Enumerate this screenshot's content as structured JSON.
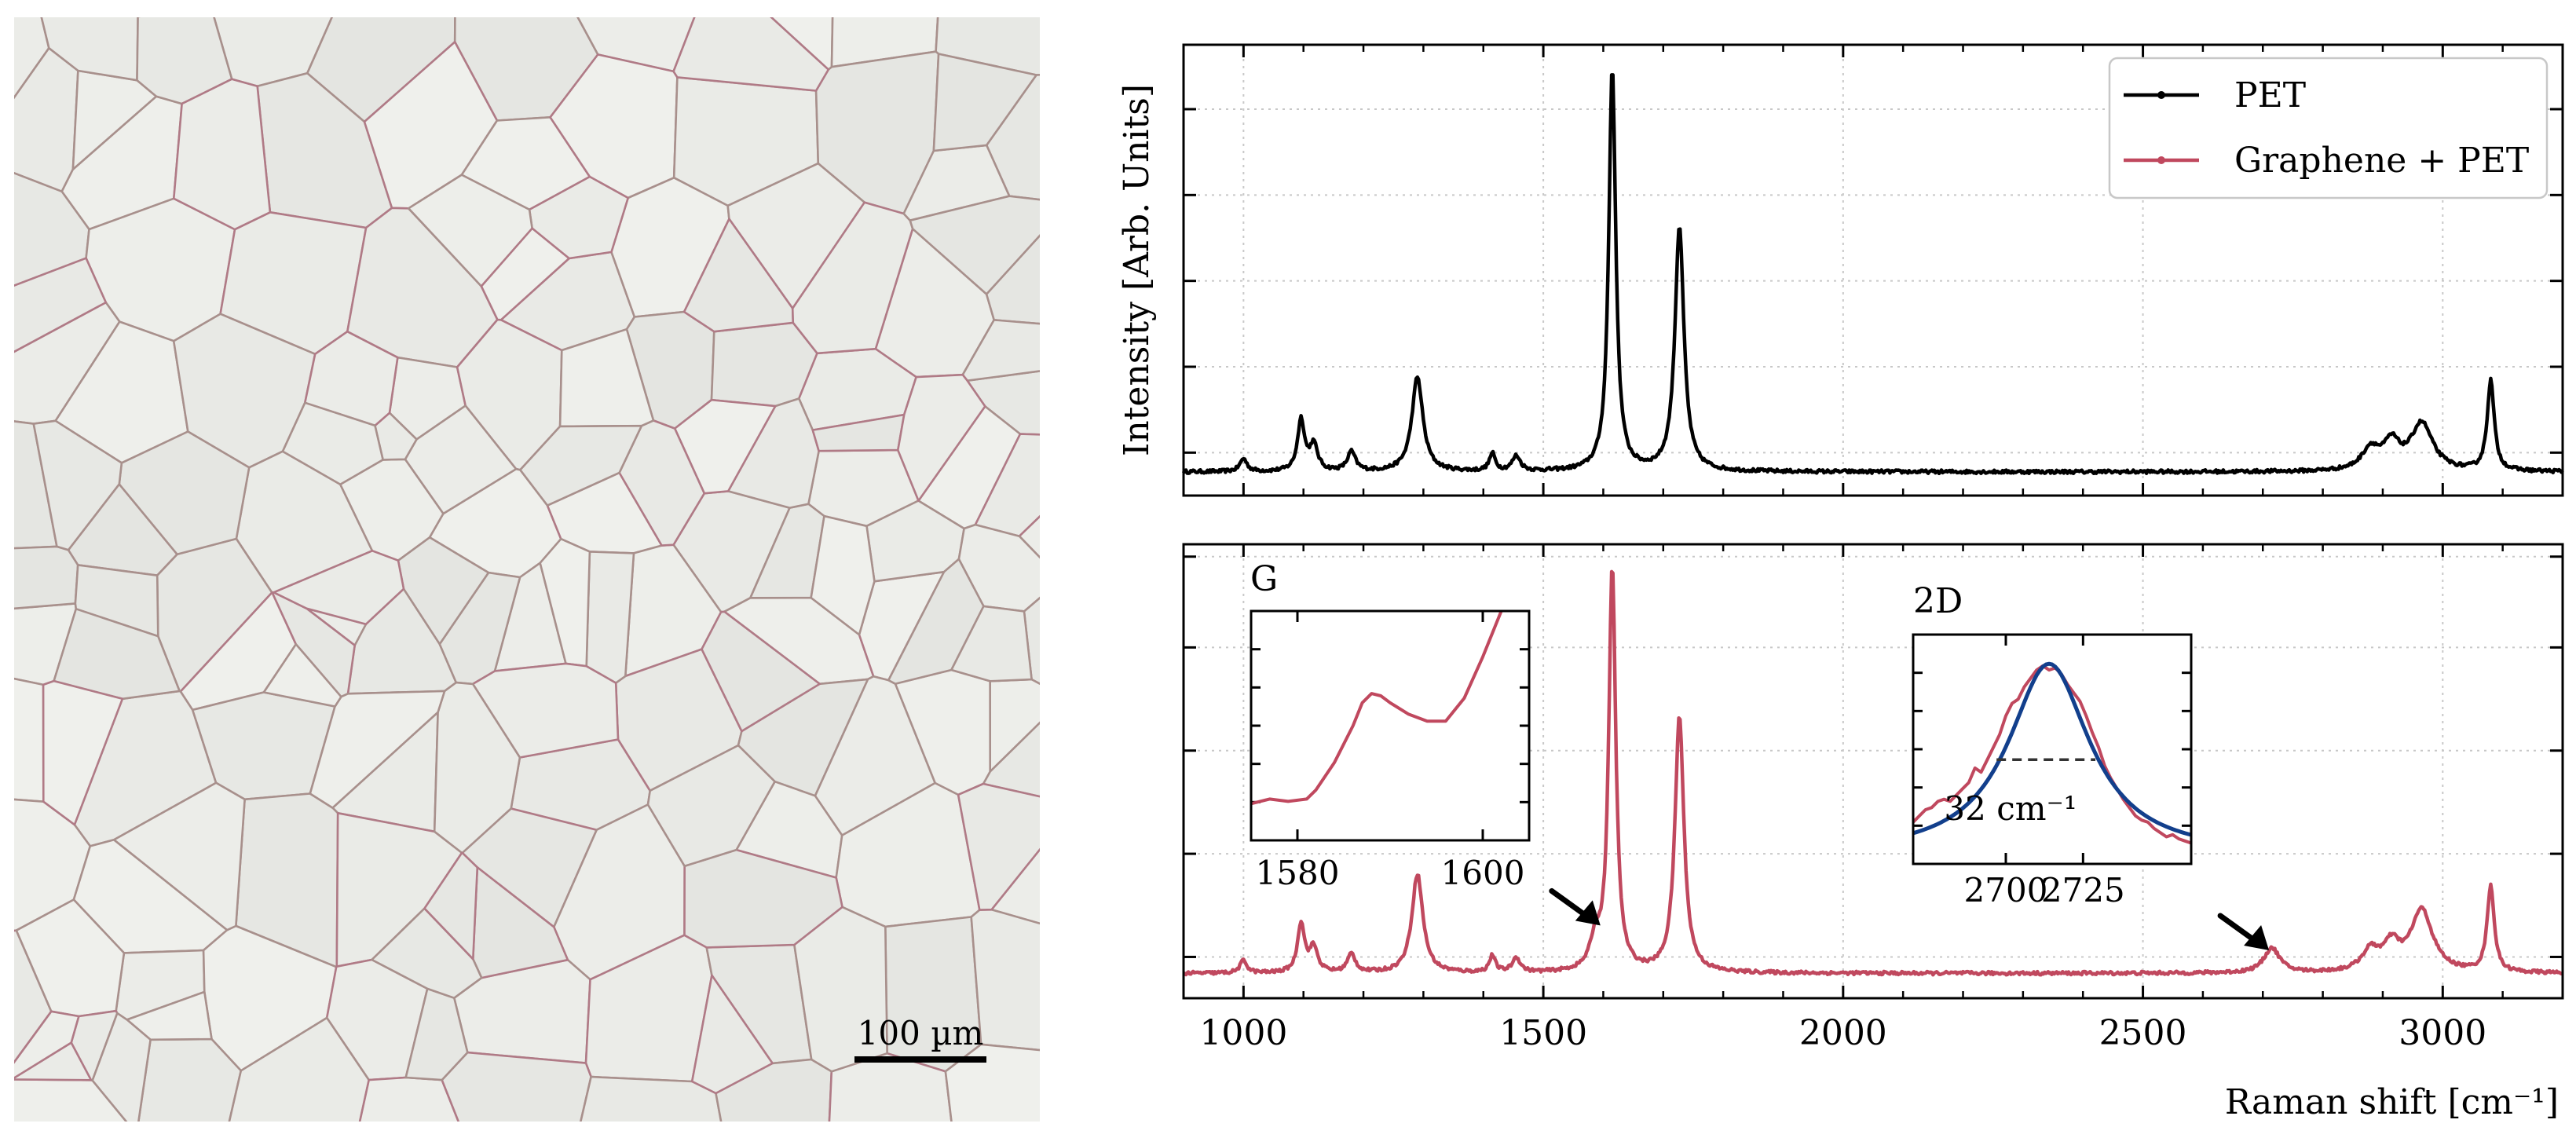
{
  "micrograph": {
    "scale_bar_label": "100 µm",
    "colors": {
      "background": "#ebebe7",
      "boundary": "#a8908c",
      "boundary_accent": "#b07a86"
    }
  },
  "chart_data": [
    {
      "id": "top",
      "type": "line",
      "title": "",
      "xlabel": "",
      "ylabel": "Intensity [Arb. Units]",
      "xlim": [
        900,
        3200
      ],
      "ylim": [
        0,
        1.05
      ],
      "xticks": [
        1000,
        1500,
        2000,
        2500,
        3000
      ],
      "show_xtick_labels": false,
      "grid": true,
      "legend": {
        "position": "top-right",
        "entries": [
          {
            "label": "PET",
            "color": "#000000"
          },
          {
            "label": "Graphene + PET",
            "color": "#c0485e"
          }
        ]
      },
      "series": [
        {
          "name": "PET",
          "color": "#000000",
          "baseline": 0.055,
          "peaks": [
            [
              1000,
              0.03,
              7
            ],
            [
              1096,
              0.12,
              7
            ],
            [
              1117,
              0.06,
              8
            ],
            [
              1180,
              0.045,
              8
            ],
            [
              1290,
              0.22,
              11
            ],
            [
              1415,
              0.04,
              6
            ],
            [
              1455,
              0.035,
              8
            ],
            [
              1615,
              0.94,
              7
            ],
            [
              1727,
              0.57,
              9
            ],
            [
              2880,
              0.05,
              18
            ],
            [
              2915,
              0.06,
              16
            ],
            [
              2965,
              0.11,
              22
            ],
            [
              3080,
              0.21,
              7
            ]
          ]
        }
      ]
    },
    {
      "id": "bottom",
      "type": "line",
      "title": "",
      "xlabel": "Raman shift [cm⁻¹]",
      "ylabel": "",
      "xlim": [
        900,
        3200
      ],
      "ylim": [
        0,
        1.1
      ],
      "xticks": [
        1000,
        1500,
        2000,
        2500,
        3000
      ],
      "xtick_labels": [
        "1000",
        "1500",
        "2000",
        "2500",
        "3000"
      ],
      "grid": true,
      "series": [
        {
          "name": "Graphene + PET",
          "color": "#c0485e",
          "baseline": 0.06,
          "peaks": [
            [
              1000,
              0.03,
              7
            ],
            [
              1096,
              0.12,
              7
            ],
            [
              1117,
              0.06,
              8
            ],
            [
              1180,
              0.045,
              8
            ],
            [
              1290,
              0.24,
              11
            ],
            [
              1415,
              0.04,
              6
            ],
            [
              1455,
              0.035,
              8
            ],
            [
              1587,
              0.07,
              10
            ],
            [
              1615,
              0.98,
              7
            ],
            [
              1727,
              0.62,
              9
            ],
            [
              2715,
              0.06,
              16
            ],
            [
              2880,
              0.05,
              18
            ],
            [
              2915,
              0.06,
              16
            ],
            [
              2965,
              0.15,
              22
            ],
            [
              3080,
              0.21,
              7
            ]
          ]
        }
      ],
      "annotations": [
        {
          "text": "arrow",
          "x": 1590,
          "y": 0.18
        },
        {
          "text": "arrow",
          "x": 2705,
          "y": 0.12
        }
      ]
    },
    {
      "id": "inset-g",
      "type": "line",
      "title": "G",
      "xlim": [
        1575,
        1605
      ],
      "ylim": [
        0,
        1
      ],
      "xticks": [
        1580,
        1600
      ],
      "xtick_labels": [
        "1580",
        "1600"
      ],
      "series": [
        {
          "name": "Graphene + PET",
          "color": "#c0485e",
          "points": [
            [
              1575,
              0.16
            ],
            [
              1577,
              0.18
            ],
            [
              1579,
              0.17
            ],
            [
              1581,
              0.18
            ],
            [
              1582,
              0.22
            ],
            [
              1584,
              0.34
            ],
            [
              1586,
              0.5
            ],
            [
              1587,
              0.6
            ],
            [
              1588,
              0.64
            ],
            [
              1589,
              0.63
            ],
            [
              1590,
              0.6
            ],
            [
              1592,
              0.55
            ],
            [
              1594,
              0.52
            ],
            [
              1596,
              0.52
            ],
            [
              1598,
              0.62
            ],
            [
              1600,
              0.8
            ],
            [
              1602,
              1.05
            ]
          ]
        }
      ]
    },
    {
      "id": "inset-2d",
      "type": "line",
      "title": "2D",
      "xlim": [
        2670,
        2760
      ],
      "ylim": [
        0,
        1.1
      ],
      "xticks": [
        2700,
        2725
      ],
      "xtick_labels": [
        "2700",
        "2725"
      ],
      "fwhm_label": "32 cm⁻¹",
      "fwhm_range": [
        2697,
        2729
      ],
      "fwhm_level": 0.5,
      "series": [
        {
          "name": "Graphene + PET",
          "color": "#c0485e",
          "points": [
            [
              2670,
              0.2
            ],
            [
              2672,
              0.23
            ],
            [
              2674,
              0.26
            ],
            [
              2676,
              0.27
            ],
            [
              2678,
              0.3
            ],
            [
              2680,
              0.31
            ],
            [
              2682,
              0.3
            ],
            [
              2684,
              0.33
            ],
            [
              2686,
              0.36
            ],
            [
              2688,
              0.39
            ],
            [
              2690,
              0.46
            ],
            [
              2692,
              0.44
            ],
            [
              2694,
              0.5
            ],
            [
              2696,
              0.56
            ],
            [
              2698,
              0.62
            ],
            [
              2700,
              0.71
            ],
            [
              2702,
              0.77
            ],
            [
              2704,
              0.79
            ],
            [
              2706,
              0.85
            ],
            [
              2708,
              0.89
            ],
            [
              2710,
              0.93
            ],
            [
              2712,
              0.95
            ],
            [
              2714,
              0.93
            ],
            [
              2716,
              0.94
            ],
            [
              2718,
              0.91
            ],
            [
              2720,
              0.86
            ],
            [
              2722,
              0.82
            ],
            [
              2724,
              0.78
            ],
            [
              2726,
              0.71
            ],
            [
              2728,
              0.63
            ],
            [
              2730,
              0.56
            ],
            [
              2732,
              0.47
            ],
            [
              2734,
              0.41
            ],
            [
              2736,
              0.36
            ],
            [
              2738,
              0.31
            ],
            [
              2740,
              0.27
            ],
            [
              2742,
              0.23
            ],
            [
              2744,
              0.21
            ],
            [
              2746,
              0.2
            ],
            [
              2748,
              0.17
            ],
            [
              2750,
              0.15
            ],
            [
              2752,
              0.13
            ],
            [
              2754,
              0.14
            ],
            [
              2756,
              0.12
            ],
            [
              2758,
              0.11
            ],
            [
              2760,
              0.1
            ]
          ]
        },
        {
          "name": "Lorentzian fit",
          "color": "#123f8c",
          "fit": {
            "center": 2714,
            "fwhm": 32,
            "height": 0.92,
            "offset": 0.04
          }
        }
      ]
    }
  ]
}
